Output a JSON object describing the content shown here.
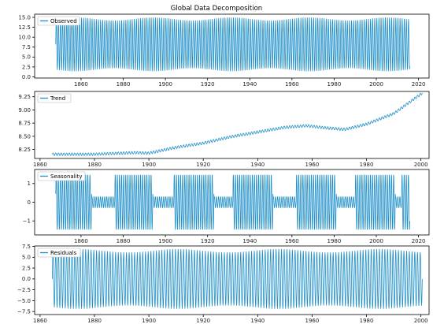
{
  "figure": {
    "title": "Global Data Decomposition"
  },
  "chart_data": [
    {
      "type": "line",
      "name": "observed",
      "legend": "Observed",
      "color": "#1f8fc8",
      "xlim": [
        1838,
        2025
      ],
      "ylim": [
        -0.3,
        15.8
      ],
      "xticks": [
        1860,
        1880,
        1900,
        1920,
        1940,
        1960,
        1980,
        2000,
        2020
      ],
      "yticks": [
        0.0,
        2.5,
        5.0,
        7.5,
        10.0,
        12.5,
        15.0
      ],
      "ytick_labels": [
        "0.0",
        "2.5",
        "5.0",
        "7.5",
        "10.0",
        "12.5",
        "15.0"
      ],
      "x_start": 1848,
      "x_end": 2015.9,
      "signal": {
        "kind": "seasonal",
        "mean": 8.2,
        "amp": 6.4,
        "period": 1.0,
        "trend_gain": 0.35
      },
      "legend_position": "upper left",
      "grid": false
    },
    {
      "type": "line",
      "name": "trend",
      "legend": "Trend",
      "color": "#1f8fc8",
      "xlim": [
        1858,
        2003
      ],
      "ylim": [
        8.08,
        9.35
      ],
      "xticks": [
        1860,
        1880,
        1900,
        1920,
        1940,
        1960,
        1980,
        2000
      ],
      "yticks": [
        8.25,
        8.5,
        8.75,
        9.0,
        9.25
      ],
      "ytick_labels": [
        "8.25",
        "8.50",
        "8.75",
        "9.00",
        "9.25"
      ],
      "x_start": 1864.5,
      "x_end": 2000.5,
      "trend_points": [
        [
          1864.5,
          8.16
        ],
        [
          1880,
          8.16
        ],
        [
          1895,
          8.19
        ],
        [
          1900,
          8.18
        ],
        [
          1910,
          8.29
        ],
        [
          1920,
          8.37
        ],
        [
          1930,
          8.49
        ],
        [
          1940,
          8.58
        ],
        [
          1950,
          8.67
        ],
        [
          1958,
          8.7
        ],
        [
          1965,
          8.66
        ],
        [
          1972,
          8.63
        ],
        [
          1980,
          8.73
        ],
        [
          1990,
          8.93
        ],
        [
          2000.5,
          9.32
        ]
      ],
      "ripple": {
        "amp": 0.025,
        "period": 1.0
      },
      "legend_position": "upper left",
      "grid": false
    },
    {
      "type": "line",
      "name": "seasonality",
      "legend": "Seasonality",
      "color": "#1f8fc8",
      "xlim": [
        1838,
        2025
      ],
      "ylim": [
        -1.75,
        1.75
      ],
      "xticks": [
        1860,
        1880,
        1900,
        1920,
        1940,
        1960,
        1980,
        2000,
        2020
      ],
      "yticks": [
        -1,
        0,
        1
      ],
      "ytick_labels": [
        "−1",
        "0",
        "1"
      ],
      "x_start": 1848,
      "x_end": 2015.9,
      "high_amp_ranges": [
        [
          1848,
          1865
        ],
        [
          1876,
          1894
        ],
        [
          1904,
          1923
        ],
        [
          1932,
          1951
        ],
        [
          1962,
          1981
        ],
        [
          1990,
          2009
        ],
        [
          2012,
          2015.9
        ]
      ],
      "amp_high": 1.5,
      "amp_low": 0.3,
      "period": 1.0,
      "legend_position": "upper left",
      "grid": false
    },
    {
      "type": "line",
      "name": "residuals",
      "legend": "Residuals",
      "color": "#1f8fc8",
      "xlim": [
        1858,
        2003
      ],
      "ylim": [
        -8.2,
        7.6
      ],
      "xticks": [
        1860,
        1880,
        1900,
        1920,
        1940,
        1960,
        1980,
        2000
      ],
      "yticks": [
        -7.5,
        -5.0,
        -2.5,
        0.0,
        2.5,
        5.0,
        7.5
      ],
      "ytick_labels": [
        "−7.5",
        "−5.0",
        "−2.5",
        "0.0",
        "2.5",
        "5.0",
        "7.5"
      ],
      "x_start": 1864.5,
      "x_end": 2000.5,
      "signal": {
        "kind": "seasonal",
        "mean": 0.0,
        "amp": 6.5,
        "period": 1.0,
        "trend_gain": 0.0
      },
      "legend_position": "upper left",
      "grid": false
    }
  ]
}
